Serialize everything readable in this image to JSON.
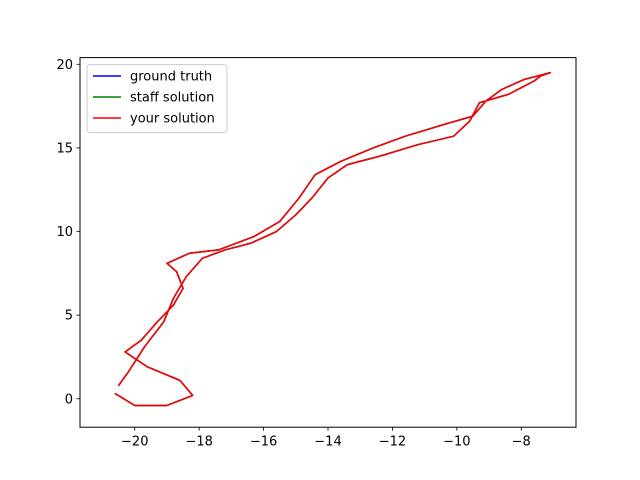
{
  "chart_data": {
    "type": "line",
    "title": "",
    "xlabel": "",
    "ylabel": "",
    "xlim": [
      -21.7,
      -6.3
    ],
    "ylim": [
      -1.7,
      20.4
    ],
    "xticks": [
      -20,
      -18,
      -16,
      -14,
      -12,
      -10,
      -8
    ],
    "yticks": [
      0,
      5,
      10,
      15,
      20
    ],
    "xtick_labels": [
      "−20",
      "−18",
      "−16",
      "−14",
      "−12",
      "−10",
      "−8"
    ],
    "ytick_labels": [
      "0",
      "5",
      "10",
      "15",
      "20"
    ],
    "grid": false,
    "legend_position": "top-left",
    "series": [
      {
        "name": "ground truth",
        "color": "#0000ff",
        "x": [
          -20.6,
          -20.0,
          -19.0,
          -18.2,
          -18.6,
          -19.6,
          -20.3,
          -19.8,
          -19.3,
          -18.8,
          -18.5,
          -18.7,
          -19.0,
          -18.3,
          -17.4,
          -16.3,
          -15.5,
          -14.9,
          -14.4,
          -13.6,
          -12.6,
          -11.6,
          -10.4,
          -9.5,
          -9.1,
          -8.6,
          -7.9,
          -7.3,
          -7.1,
          -7.4,
          -7.6,
          -8.0,
          -8.4,
          -9.3,
          -9.6,
          -10.1,
          -11.2,
          -12.4,
          -13.4,
          -14.0,
          -14.5,
          -15.0,
          -15.6,
          -16.4,
          -17.2,
          -17.9,
          -18.4,
          -18.8,
          -19.1,
          -19.7,
          -20.2,
          -20.5
        ],
        "y": [
          0.3,
          -0.4,
          -0.4,
          0.2,
          1.1,
          1.9,
          2.8,
          3.5,
          4.6,
          5.6,
          6.6,
          7.6,
          8.1,
          8.7,
          8.9,
          9.7,
          10.6,
          12.0,
          13.4,
          14.2,
          15.0,
          15.7,
          16.4,
          16.9,
          17.8,
          18.5,
          19.1,
          19.4,
          19.5,
          19.3,
          19.0,
          18.6,
          18.2,
          17.7,
          16.6,
          15.7,
          15.2,
          14.5,
          14.0,
          13.2,
          12.0,
          11.0,
          10.0,
          9.3,
          8.9,
          8.4,
          7.3,
          6.0,
          4.6,
          3.1,
          1.6,
          0.8
        ]
      },
      {
        "name": "staff solution",
        "color": "#008000",
        "x": [
          -20.6,
          -20.0,
          -19.0,
          -18.2,
          -18.6,
          -19.6,
          -20.3,
          -19.8,
          -19.3,
          -18.8,
          -18.5,
          -18.7,
          -19.0,
          -18.3,
          -17.4,
          -16.3,
          -15.5,
          -14.9,
          -14.4,
          -13.6,
          -12.6,
          -11.6,
          -10.4,
          -9.5,
          -9.1,
          -8.6,
          -7.9,
          -7.3,
          -7.1,
          -7.4,
          -7.6,
          -8.0,
          -8.4,
          -9.3,
          -9.6,
          -10.1,
          -11.2,
          -12.4,
          -13.4,
          -14.0,
          -14.5,
          -15.0,
          -15.6,
          -16.4,
          -17.2,
          -17.9,
          -18.4,
          -18.8,
          -19.1,
          -19.7,
          -20.2,
          -20.5
        ],
        "y": [
          0.3,
          -0.4,
          -0.4,
          0.2,
          1.1,
          1.9,
          2.8,
          3.5,
          4.6,
          5.6,
          6.6,
          7.6,
          8.1,
          8.7,
          8.9,
          9.7,
          10.6,
          12.0,
          13.4,
          14.2,
          15.0,
          15.7,
          16.4,
          16.9,
          17.8,
          18.5,
          19.1,
          19.4,
          19.5,
          19.3,
          19.0,
          18.6,
          18.2,
          17.7,
          16.6,
          15.7,
          15.2,
          14.5,
          14.0,
          13.2,
          12.0,
          11.0,
          10.0,
          9.3,
          8.9,
          8.4,
          7.3,
          6.0,
          4.6,
          3.1,
          1.6,
          0.8
        ]
      },
      {
        "name": "your solution",
        "color": "#ff0000",
        "x": [
          -20.6,
          -20.0,
          -19.0,
          -18.2,
          -18.6,
          -19.6,
          -20.3,
          -19.8,
          -19.3,
          -18.8,
          -18.5,
          -18.7,
          -19.0,
          -18.3,
          -17.4,
          -16.3,
          -15.5,
          -14.9,
          -14.4,
          -13.6,
          -12.6,
          -11.6,
          -10.4,
          -9.5,
          -9.1,
          -8.6,
          -7.9,
          -7.3,
          -7.1,
          -7.4,
          -7.6,
          -8.0,
          -8.4,
          -9.3,
          -9.6,
          -10.1,
          -11.2,
          -12.4,
          -13.4,
          -14.0,
          -14.5,
          -15.0,
          -15.6,
          -16.4,
          -17.2,
          -17.9,
          -18.4,
          -18.8,
          -19.1,
          -19.7,
          -20.2,
          -20.5
        ],
        "y": [
          0.3,
          -0.4,
          -0.4,
          0.2,
          1.1,
          1.9,
          2.8,
          3.5,
          4.6,
          5.6,
          6.6,
          7.6,
          8.1,
          8.7,
          8.9,
          9.7,
          10.6,
          12.0,
          13.4,
          14.2,
          15.0,
          15.7,
          16.4,
          16.9,
          17.8,
          18.5,
          19.1,
          19.4,
          19.5,
          19.3,
          19.0,
          18.6,
          18.2,
          17.7,
          16.6,
          15.7,
          15.2,
          14.5,
          14.0,
          13.2,
          12.0,
          11.0,
          10.0,
          9.3,
          8.9,
          8.4,
          7.3,
          6.0,
          4.6,
          3.1,
          1.6,
          0.8
        ]
      }
    ]
  }
}
